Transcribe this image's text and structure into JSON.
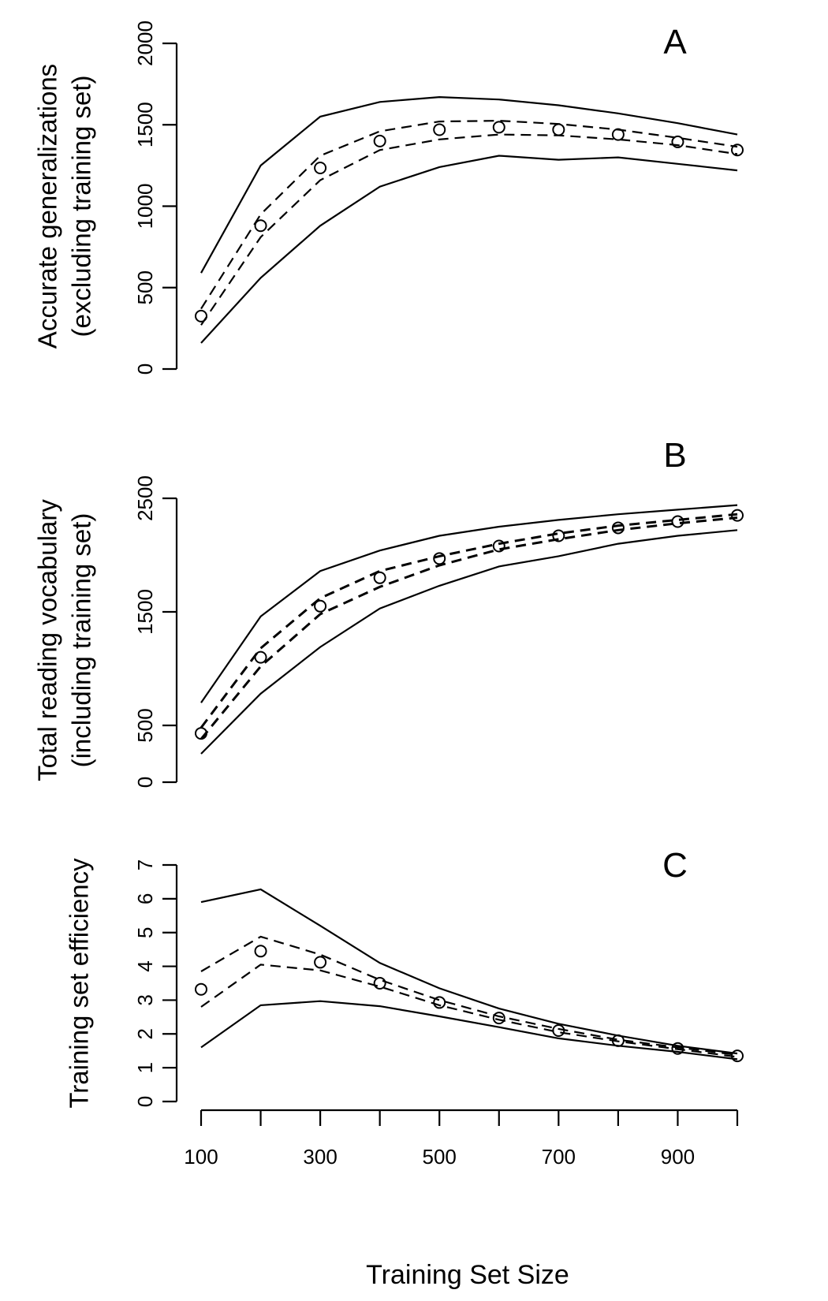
{
  "chart_data": [
    {
      "panel_letter": "A",
      "type": "line",
      "ylabel_line1": "Accurate generalizations",
      "ylabel_line2": "(excluding training set)",
      "ylim": [
        0,
        2000
      ],
      "yticks": [
        0,
        500,
        1000,
        1500,
        2000
      ],
      "x": [
        100,
        200,
        300,
        400,
        500,
        600,
        700,
        800,
        900,
        1000
      ],
      "series": [
        {
          "style": "solid",
          "values": [
            590,
            1250,
            1550,
            1640,
            1670,
            1655,
            1620,
            1570,
            1510,
            1440
          ]
        },
        {
          "style": "solid",
          "values": [
            160,
            560,
            880,
            1120,
            1240,
            1310,
            1285,
            1300,
            1260,
            1220
          ]
        },
        {
          "style": "dashed",
          "values": [
            370,
            950,
            1310,
            1460,
            1520,
            1525,
            1505,
            1470,
            1420,
            1365
          ]
        },
        {
          "style": "dashed",
          "values": [
            270,
            810,
            1160,
            1345,
            1410,
            1440,
            1435,
            1410,
            1375,
            1320
          ]
        },
        {
          "style": "points",
          "values": [
            325,
            880,
            1235,
            1400,
            1470,
            1485,
            1470,
            1440,
            1395,
            1345
          ]
        }
      ]
    },
    {
      "panel_letter": "B",
      "type": "line",
      "ylabel_line1": "Total reading vocabulary",
      "ylabel_line2": "(including training set)",
      "ylim": [
        0,
        2500
      ],
      "yticks": [
        0,
        500,
        1500,
        2500
      ],
      "x": [
        100,
        200,
        300,
        400,
        500,
        600,
        700,
        800,
        900,
        1000
      ],
      "series": [
        {
          "style": "solid",
          "values": [
            700,
            1460,
            1860,
            2040,
            2170,
            2250,
            2310,
            2360,
            2400,
            2440
          ]
        },
        {
          "style": "solid",
          "values": [
            250,
            780,
            1190,
            1530,
            1730,
            1900,
            1990,
            2100,
            2170,
            2220
          ]
        },
        {
          "style": "dashed",
          "values": [
            480,
            1180,
            1620,
            1860,
            1990,
            2100,
            2190,
            2260,
            2310,
            2360
          ]
        },
        {
          "style": "dashed",
          "values": [
            380,
            1020,
            1480,
            1720,
            1910,
            2050,
            2140,
            2220,
            2280,
            2330
          ]
        },
        {
          "style": "points",
          "values": [
            430,
            1100,
            1550,
            1800,
            1970,
            2080,
            2170,
            2240,
            2295,
            2350
          ]
        }
      ]
    },
    {
      "panel_letter": "C",
      "type": "line",
      "ylabel_line1": "Training set efficiency",
      "ylabel_line2": "",
      "ylim": [
        0,
        7
      ],
      "yticks": [
        0,
        1,
        2,
        3,
        4,
        5,
        6,
        7
      ],
      "x": [
        100,
        200,
        300,
        400,
        500,
        600,
        700,
        800,
        900,
        1000
      ],
      "series": [
        {
          "style": "solid",
          "values": [
            5.9,
            6.28,
            5.2,
            4.1,
            3.35,
            2.75,
            2.3,
            1.95,
            1.65,
            1.42
          ]
        },
        {
          "style": "solid",
          "values": [
            1.6,
            2.85,
            2.97,
            2.82,
            2.52,
            2.2,
            1.87,
            1.65,
            1.47,
            1.25
          ]
        },
        {
          "style": "dashed",
          "values": [
            3.85,
            4.88,
            4.35,
            3.6,
            3.0,
            2.52,
            2.15,
            1.83,
            1.6,
            1.38
          ]
        },
        {
          "style": "dashed",
          "values": [
            2.8,
            4.05,
            3.88,
            3.4,
            2.85,
            2.42,
            2.05,
            1.78,
            1.55,
            1.32
          ]
        },
        {
          "style": "points",
          "values": [
            3.32,
            4.45,
            4.12,
            3.5,
            2.93,
            2.47,
            2.1,
            1.8,
            1.57,
            1.35
          ]
        }
      ]
    }
  ],
  "x_axis": {
    "label": "Training Set Size",
    "ticks": [
      100,
      300,
      500,
      700,
      900
    ],
    "xlim": [
      100,
      1000
    ]
  }
}
